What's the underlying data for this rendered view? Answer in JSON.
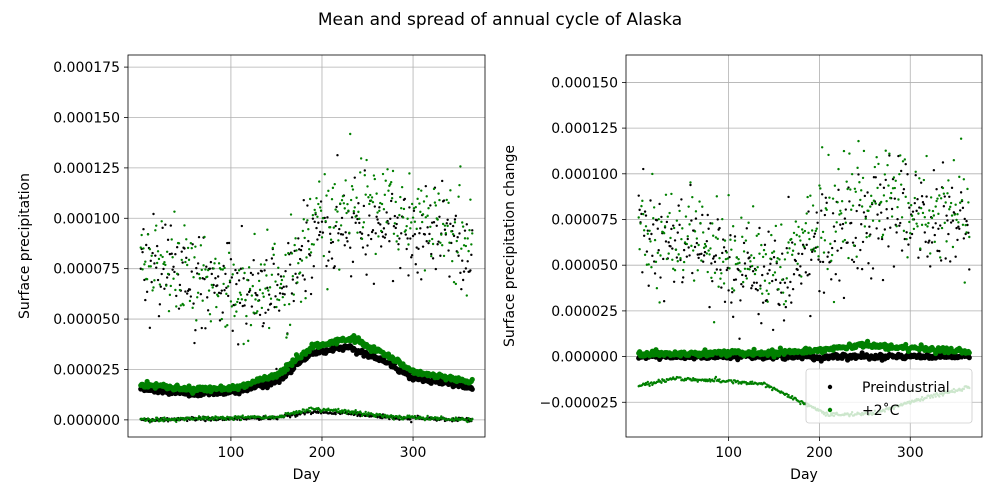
{
  "figure": {
    "title": "Mean and spread of annual cycle of Alaska"
  },
  "colors": {
    "preindustrial": "#000000",
    "plus2": "#008000"
  },
  "chart_data": [
    {
      "type": "scatter",
      "xlabel": "Day",
      "ylabel": "Surface precipitation",
      "xlim": [
        -13,
        379
      ],
      "ylim": [
        -8.5e-06,
        0.000181
      ],
      "xticks": [
        100,
        200,
        300
      ],
      "yticks": [
        0.0,
        2.5e-05,
        5e-05,
        7.5e-05,
        0.0001,
        0.000125,
        0.00015,
        0.000175
      ],
      "ytick_labels": [
        "0.000000",
        "0.000025",
        "0.000050",
        "0.000075",
        "0.000100",
        "0.000125",
        "0.000150",
        "0.000175"
      ],
      "grid": true,
      "x_range": [
        1,
        365
      ],
      "series": [
        {
          "name": "Preindustrial",
          "color": "#000000",
          "mean_keypoints": [
            [
              1,
              1.55e-05
            ],
            [
              60,
              1.3e-05
            ],
            [
              100,
              1.35e-05
            ],
            [
              150,
              1.9e-05
            ],
            [
              190,
              3.35e-05
            ],
            [
              230,
              3.6e-05
            ],
            [
              270,
              2.9e-05
            ],
            [
              300,
              2.1e-05
            ],
            [
              365,
              1.6e-05
            ]
          ],
          "upper_keypoints": [
            [
              1,
              8e-05
            ],
            [
              60,
              6.8e-05
            ],
            [
              100,
              6.3e-05
            ],
            [
              130,
              6.2e-05
            ],
            [
              170,
              7.2e-05
            ],
            [
              200,
              9.4e-05
            ],
            [
              240,
              9.5e-05
            ],
            [
              280,
              9.2e-05
            ],
            [
              320,
              9e-05
            ],
            [
              365,
              8.5e-05
            ]
          ],
          "lower_keypoints": [
            [
              1,
              0.0
            ],
            [
              150,
              1e-06
            ],
            [
              190,
              4e-06
            ],
            [
              230,
              3e-06
            ],
            [
              280,
              1e-06
            ],
            [
              365,
              0.0
            ]
          ]
        },
        {
          "name": "+2°C",
          "color": "#008000",
          "mean_keypoints": [
            [
              1,
              1.75e-05
            ],
            [
              60,
              1.5e-05
            ],
            [
              100,
              1.55e-05
            ],
            [
              150,
              2.2e-05
            ],
            [
              190,
              3.65e-05
            ],
            [
              235,
              4.05e-05
            ],
            [
              270,
              3.25e-05
            ],
            [
              300,
              2.4e-05
            ],
            [
              365,
              1.85e-05
            ]
          ],
          "upper_keypoints": [
            [
              1,
              8.2e-05
            ],
            [
              60,
              7.2e-05
            ],
            [
              100,
              6.2e-05
            ],
            [
              130,
              6.3e-05
            ],
            [
              170,
              7.6e-05
            ],
            [
              200,
              0.000102
            ],
            [
              240,
              0.000112
            ],
            [
              280,
              0.000105
            ],
            [
              320,
              9.8e-05
            ],
            [
              365,
              9e-05
            ]
          ],
          "lower_keypoints": [
            [
              1,
              0.0
            ],
            [
              150,
              1.5e-06
            ],
            [
              190,
              5.5e-06
            ],
            [
              230,
              4e-06
            ],
            [
              280,
              1.5e-06
            ],
            [
              365,
              0.0
            ]
          ]
        }
      ]
    },
    {
      "type": "scatter",
      "xlabel": "Day",
      "ylabel": "Surface precipitation change",
      "xlim": [
        -13,
        379
      ],
      "ylim": [
        -4.4e-05,
        0.000165
      ],
      "xticks": [
        100,
        200,
        300
      ],
      "yticks": [
        -2.5e-05,
        0.0,
        2.5e-05,
        5e-05,
        7.5e-05,
        0.0001,
        0.000125,
        0.00015
      ],
      "ytick_labels": [
        "−0.000025",
        "0.000000",
        "0.000025",
        "0.000050",
        "0.000075",
        "0.000100",
        "0.000125",
        "0.000150"
      ],
      "grid": true,
      "legend": {
        "placement": "lower-right",
        "entries": [
          "Preindustrial",
          "+2˚C"
        ]
      },
      "x_range": [
        1,
        365
      ],
      "series": [
        {
          "name": "Preindustrial",
          "color": "#000000",
          "mean_keypoints": [
            [
              1,
              0.0
            ],
            [
              365,
              0.0
            ]
          ],
          "upper_keypoints": [
            [
              1,
              6.8e-05
            ],
            [
              60,
              5.8e-05
            ],
            [
              100,
              4.6e-05
            ],
            [
              130,
              4.2e-05
            ],
            [
              170,
              4.5e-05
            ],
            [
              200,
              6e-05
            ],
            [
              240,
              7.2e-05
            ],
            [
              280,
              7.8e-05
            ],
            [
              320,
              7.5e-05
            ],
            [
              365,
              6.8e-05
            ]
          ],
          "lower_keypoints": [
            [
              1,
              0.0
            ],
            [
              365,
              0.0
            ]
          ]
        },
        {
          "name": "+2°C",
          "color": "#008000",
          "mean_keypoints": [
            [
              1,
              1.5e-06
            ],
            [
              150,
              2e-06
            ],
            [
              200,
              3.5e-06
            ],
            [
              250,
              6e-06
            ],
            [
              300,
              5e-06
            ],
            [
              365,
              2.5e-06
            ]
          ],
          "upper_keypoints": [
            [
              1,
              6.8e-05
            ],
            [
              60,
              6.2e-05
            ],
            [
              100,
              5e-05
            ],
            [
              130,
              4.8e-05
            ],
            [
              170,
              5.5e-05
            ],
            [
              200,
              7e-05
            ],
            [
              240,
              8.5e-05
            ],
            [
              280,
              8.8e-05
            ],
            [
              320,
              8e-05
            ],
            [
              365,
              7.5e-05
            ]
          ],
          "lower_keypoints": [
            [
              1,
              -1.6e-05
            ],
            [
              40,
              -1.2e-05
            ],
            [
              100,
              -1.35e-05
            ],
            [
              140,
              -1.5e-05
            ],
            [
              180,
              -2.5e-05
            ],
            [
              210,
              -3.2e-05
            ],
            [
              260,
              -3.1e-05
            ],
            [
              320,
              -2.2e-05
            ],
            [
              365,
              -1.65e-05
            ]
          ]
        }
      ]
    }
  ]
}
